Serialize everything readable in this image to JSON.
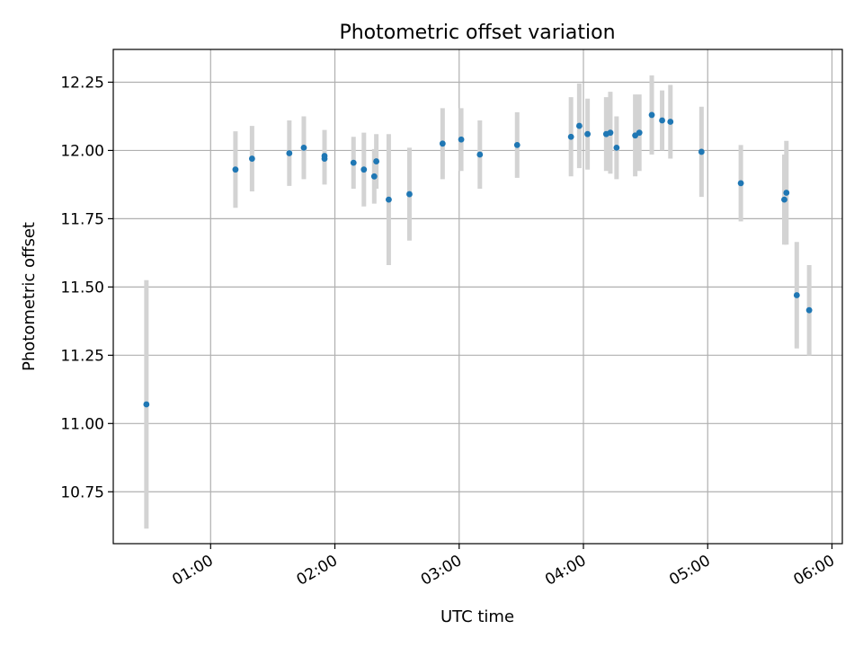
{
  "chart_data": {
    "type": "scatter",
    "title": "Photometric offset variation",
    "xlabel": "UTC time",
    "ylabel": "Photometric offset",
    "x_unit": "UTC time (HH:MM)",
    "xlim": [
      "00:13",
      "06:05"
    ],
    "ylim": [
      10.56,
      12.37
    ],
    "x_ticks": [
      "01:00",
      "02:00",
      "03:00",
      "04:00",
      "05:00",
      "06:00"
    ],
    "y_ticks": [
      "10.75",
      "11.00",
      "11.25",
      "11.50",
      "11.75",
      "12.00",
      "12.25"
    ],
    "grid": true,
    "x_tick_rotation_deg": 30,
    "colors": {
      "points": "#1f77b4",
      "errorbars": "#d3d3d3",
      "grid": "#b0b0b0"
    },
    "points": [
      {
        "x": "00:29",
        "y": 11.07,
        "err": 0.455
      },
      {
        "x": "01:12",
        "y": 11.93,
        "err": 0.14
      },
      {
        "x": "01:20",
        "y": 11.97,
        "err": 0.12
      },
      {
        "x": "01:38",
        "y": 11.99,
        "err": 0.12
      },
      {
        "x": "01:45",
        "y": 12.01,
        "err": 0.115
      },
      {
        "x": "01:55",
        "y": 11.97,
        "err": 0.095
      },
      {
        "x": "01:55",
        "y": 11.98,
        "err": 0.095
      },
      {
        "x": "02:09",
        "y": 11.955,
        "err": 0.095
      },
      {
        "x": "02:14",
        "y": 11.93,
        "err": 0.135
      },
      {
        "x": "02:19",
        "y": 11.905,
        "err": 0.1
      },
      {
        "x": "02:20",
        "y": 11.96,
        "err": 0.1
      },
      {
        "x": "02:26",
        "y": 11.82,
        "err": 0.24
      },
      {
        "x": "02:36",
        "y": 11.84,
        "err": 0.17
      },
      {
        "x": "02:52",
        "y": 12.025,
        "err": 0.13
      },
      {
        "x": "03:01",
        "y": 12.04,
        "err": 0.115
      },
      {
        "x": "03:10",
        "y": 11.985,
        "err": 0.125
      },
      {
        "x": "03:28",
        "y": 12.02,
        "err": 0.12
      },
      {
        "x": "03:54",
        "y": 12.05,
        "err": 0.145
      },
      {
        "x": "03:58",
        "y": 12.09,
        "err": 0.155
      },
      {
        "x": "04:02",
        "y": 12.06,
        "err": 0.13
      },
      {
        "x": "04:11",
        "y": 12.06,
        "err": 0.135
      },
      {
        "x": "04:13",
        "y": 12.065,
        "err": 0.15
      },
      {
        "x": "04:16",
        "y": 12.01,
        "err": 0.115
      },
      {
        "x": "04:25",
        "y": 12.055,
        "err": 0.15
      },
      {
        "x": "04:27",
        "y": 12.065,
        "err": 0.14
      },
      {
        "x": "04:33",
        "y": 12.13,
        "err": 0.145
      },
      {
        "x": "04:38",
        "y": 12.11,
        "err": 0.11
      },
      {
        "x": "04:42",
        "y": 12.105,
        "err": 0.135
      },
      {
        "x": "04:57",
        "y": 11.995,
        "err": 0.165
      },
      {
        "x": "05:16",
        "y": 11.88,
        "err": 0.14
      },
      {
        "x": "05:37",
        "y": 11.82,
        "err": 0.165
      },
      {
        "x": "05:38",
        "y": 11.845,
        "err": 0.19
      },
      {
        "x": "05:43",
        "y": 11.47,
        "err": 0.195
      },
      {
        "x": "05:49",
        "y": 11.415,
        "err": 0.165
      }
    ]
  }
}
